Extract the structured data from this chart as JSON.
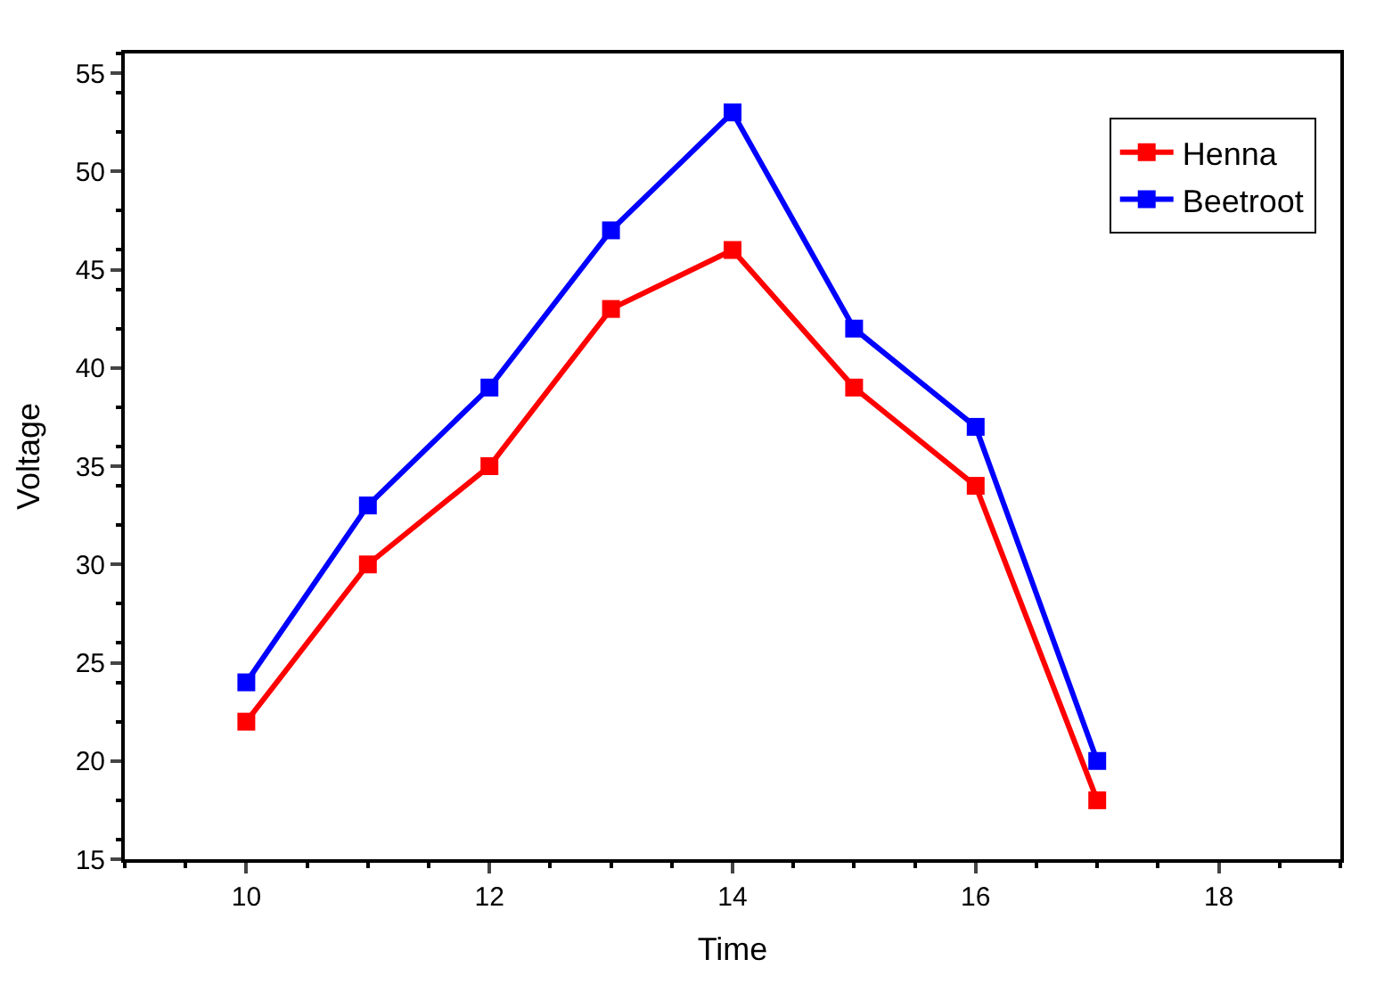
{
  "chart_data": {
    "type": "line",
    "xlabel": "Time",
    "ylabel": "Voltage",
    "x": [
      10,
      11,
      12,
      13,
      14,
      15,
      16,
      17
    ],
    "series": [
      {
        "name": "Henna",
        "color": "#ff0000",
        "values": [
          22,
          30,
          35,
          43,
          46,
          39,
          34,
          18
        ]
      },
      {
        "name": "Beetroot",
        "color": "#0000ff",
        "values": [
          24,
          33,
          39,
          47,
          53,
          42,
          37,
          20
        ]
      }
    ],
    "xlim": [
      9,
      19
    ],
    "xticks": [
      10,
      12,
      14,
      16,
      18
    ],
    "ylim": [
      15,
      56
    ],
    "yticks": [
      15,
      20,
      25,
      30,
      35,
      40,
      45,
      50,
      55
    ],
    "legend": "top right",
    "marker": "square",
    "line_style": "solid"
  }
}
